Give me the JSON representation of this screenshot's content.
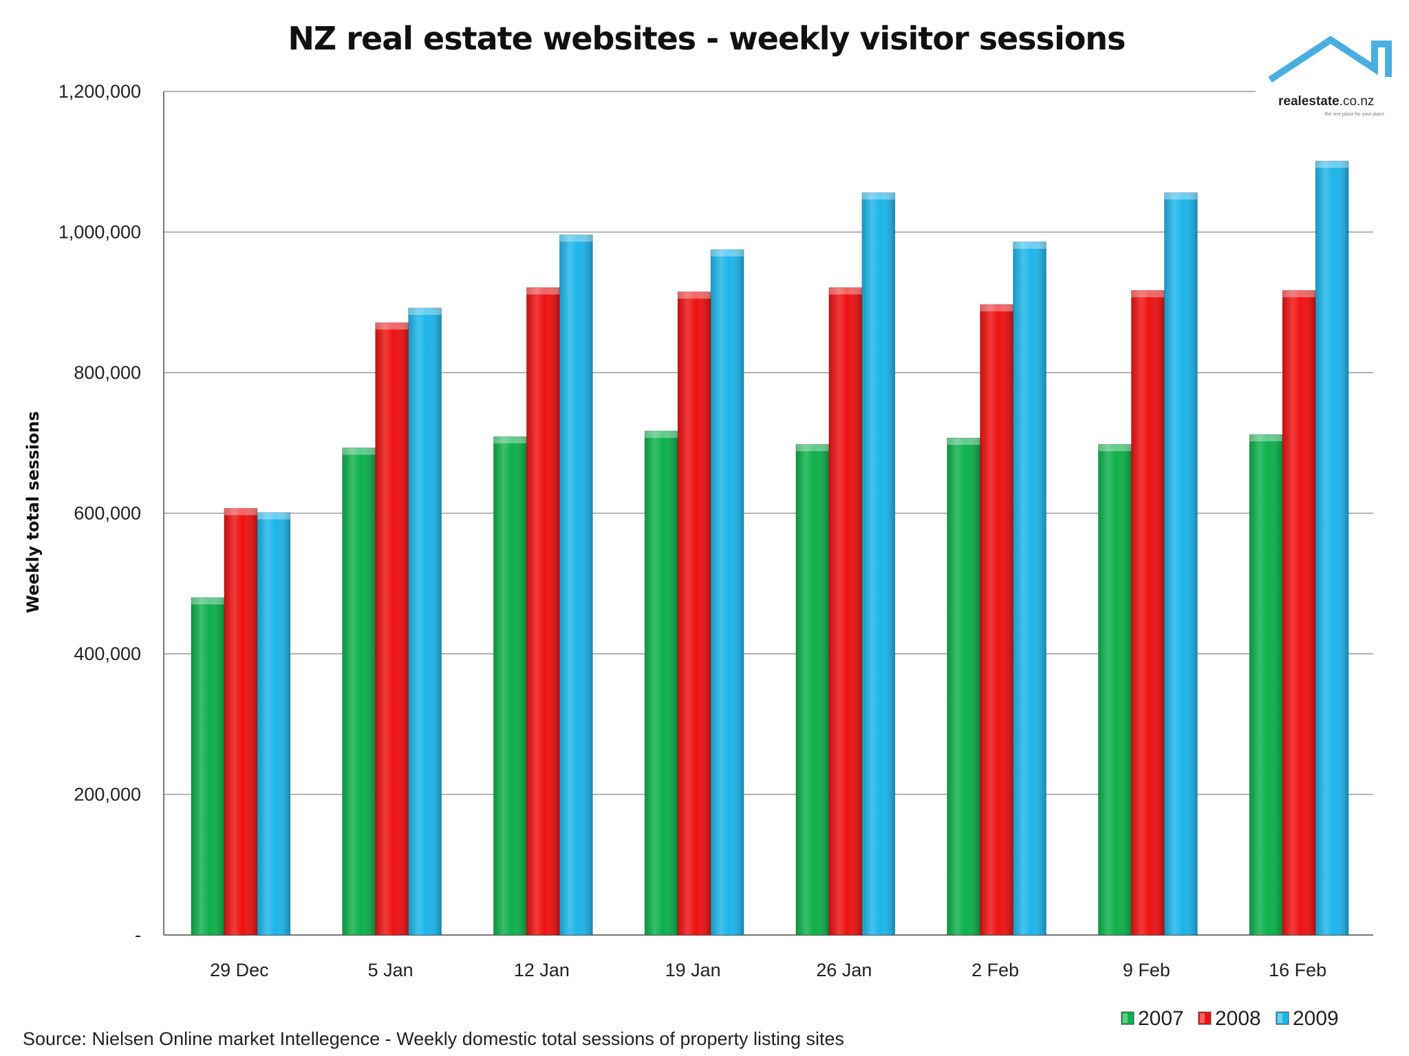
{
  "colors": {
    "2007": "#0db04b",
    "2008": "#ee1111",
    "2009": "#1cb5ea",
    "grid": "#9a9a9a",
    "logo": "#4aaee0"
  },
  "logo": {
    "brand": "realestate",
    "suffix": ".co.nz",
    "tagline": "the one place for your place"
  },
  "chart_data": {
    "type": "bar",
    "title": "NZ real estate websites - weekly visitor sessions",
    "ylabel": "Weekly total sessions",
    "xlabel": "",
    "ylim": [
      0,
      1200000
    ],
    "yticks": [
      "-",
      "200,000",
      "400,000",
      "600,000",
      "800,000",
      "1,000,000",
      "1,200,000"
    ],
    "ytick_values": [
      0,
      200000,
      400000,
      600000,
      800000,
      1000000,
      1200000
    ],
    "grid": true,
    "legend_position": "bottom-right",
    "categories": [
      "29 Dec",
      "5 Jan",
      "12 Jan",
      "19 Jan",
      "26 Jan",
      "2 Feb",
      "9 Feb",
      "16 Feb"
    ],
    "series": [
      {
        "name": "2007",
        "values": [
          480000,
          693000,
          709000,
          717000,
          698000,
          707000,
          698000,
          712000
        ]
      },
      {
        "name": "2008",
        "values": [
          607000,
          871000,
          921000,
          915000,
          921000,
          897000,
          917000,
          917000
        ]
      },
      {
        "name": "2009",
        "values": [
          601000,
          892000,
          996000,
          975000,
          1056000,
          986000,
          1056000,
          1101000
        ]
      }
    ],
    "source": "Source: Nielsen Online market Intellegence - Weekly domestic total sessions of property listing sites"
  }
}
